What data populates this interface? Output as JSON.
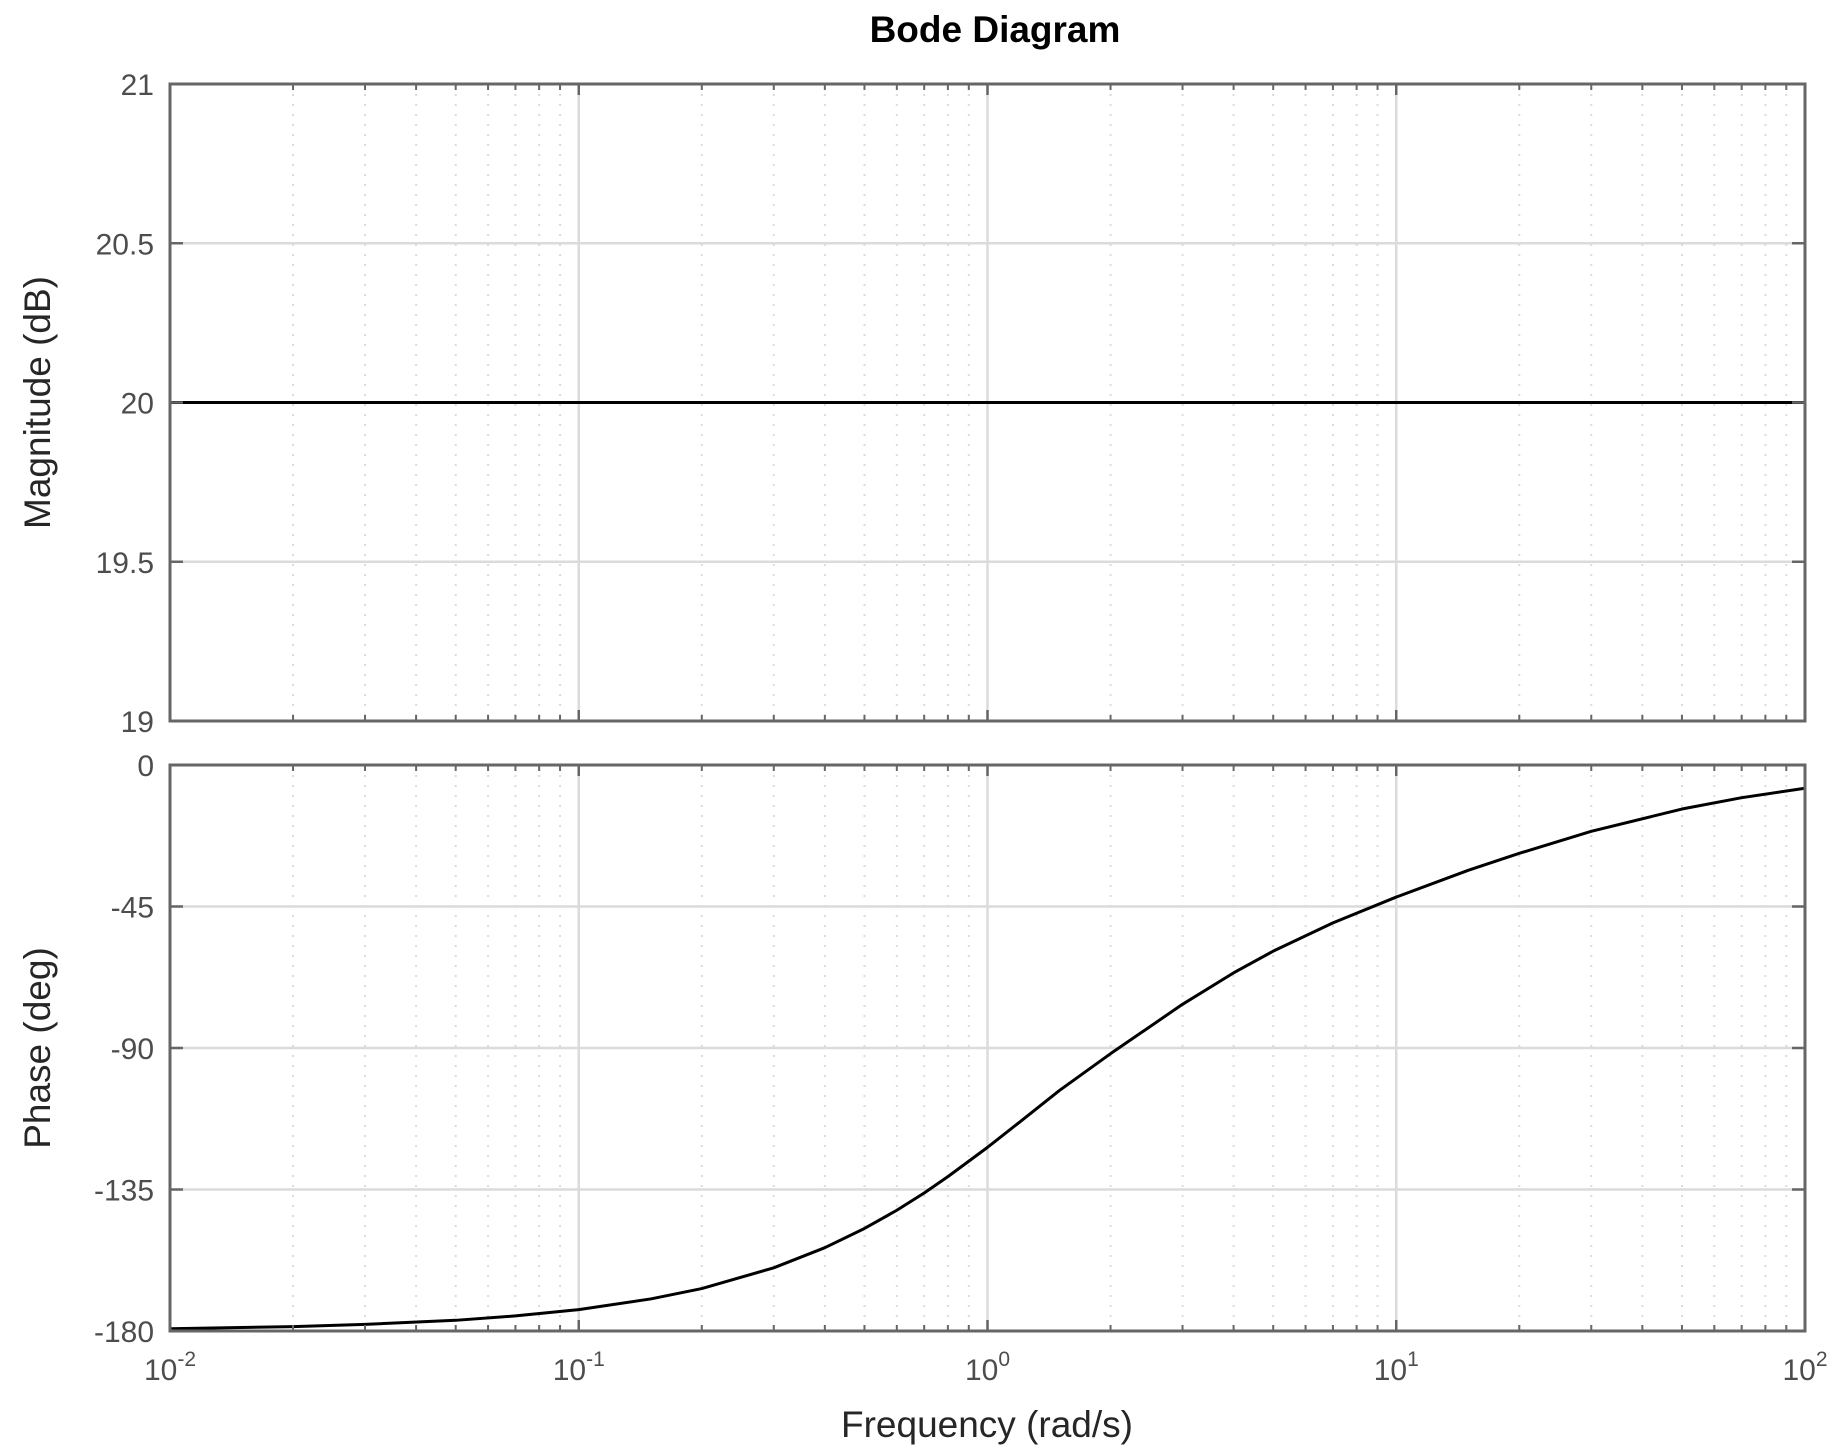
{
  "chart_data": {
    "type": "line",
    "title": "Bode Diagram",
    "xlabel": "Frequency  (rad/s)",
    "x_scale": "log",
    "xlim": [
      0.01,
      100
    ],
    "x_ticks": [
      {
        "value": 0.01,
        "base": "10",
        "exp": "-2"
      },
      {
        "value": 0.1,
        "base": "10",
        "exp": "-1"
      },
      {
        "value": 1,
        "base": "10",
        "exp": "0"
      },
      {
        "value": 10,
        "base": "10",
        "exp": "1"
      },
      {
        "value": 100,
        "base": "10",
        "exp": "2"
      }
    ],
    "grid": true,
    "line_color": "#000000",
    "grid_color": "#dbdbdb",
    "axis_color": "#666666",
    "panels": [
      {
        "id": "magnitude",
        "ylabel": "Magnitude (dB)",
        "ylim": [
          19,
          21
        ],
        "y_ticks": [
          {
            "value": 19,
            "label": "19"
          },
          {
            "value": 19.5,
            "label": "19.5"
          },
          {
            "value": 20,
            "label": "20"
          },
          {
            "value": 20.5,
            "label": "20.5"
          },
          {
            "value": 21,
            "label": "21"
          }
        ],
        "series": [
          {
            "x": [
              0.01,
              0.1,
              1,
              10,
              100
            ],
            "y": [
              20,
              20,
              20,
              20,
              20
            ]
          }
        ]
      },
      {
        "id": "phase",
        "ylabel": "Phase (deg)",
        "ylim": [
          -180,
          0
        ],
        "y_ticks": [
          {
            "value": -180,
            "label": "-180"
          },
          {
            "value": -135,
            "label": "-135"
          },
          {
            "value": -90,
            "label": "-90"
          },
          {
            "value": -45,
            "label": "-45"
          },
          {
            "value": 0,
            "label": "0"
          }
        ],
        "series": [
          {
            "x": [
              0.01,
              0.02,
              0.03,
              0.05,
              0.07,
              0.1,
              0.15,
              0.2,
              0.3,
              0.4,
              0.5,
              0.6,
              0.7,
              0.8,
              1,
              1.2,
              1.5,
              2,
              3,
              4,
              5,
              7,
              10,
              15,
              20,
              30,
              50,
              70,
              100
            ],
            "y": [
              -179.3,
              -178.6,
              -177.9,
              -176.6,
              -175.2,
              -173.2,
              -169.8,
              -166.5,
              -159.9,
              -153.5,
              -147.4,
              -141.6,
              -136.1,
              -130.9,
              -121.6,
              -113.5,
              -103.5,
              -91.8,
              -76.1,
              -66.1,
              -59.2,
              -50.2,
              -42.0,
              -33.5,
              -28.1,
              -21.1,
              -14.0,
              -10.4,
              -7.4
            ]
          }
        ]
      }
    ]
  }
}
